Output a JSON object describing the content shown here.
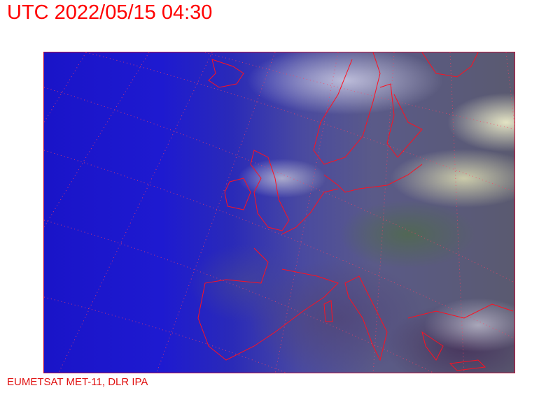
{
  "header": {
    "title": "UTC 2022/05/15 04:30"
  },
  "footer": {
    "credit": "EUMETSAT MET-11, DLR IPA"
  },
  "image": {
    "type": "satellite-composite",
    "overlay_color": "#ff0000",
    "border_color": "#c0103a"
  }
}
